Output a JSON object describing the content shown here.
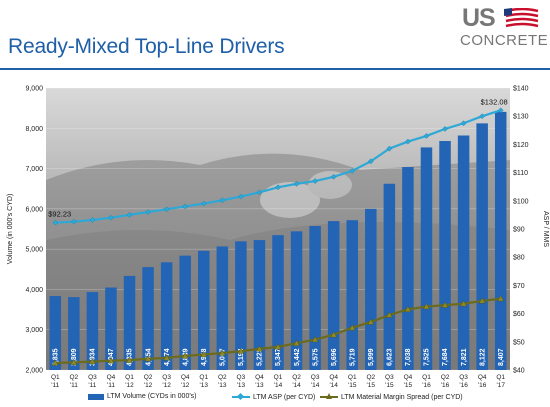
{
  "header": {
    "title": "Ready-Mixed Top-Line Drivers",
    "logo_top": "US",
    "logo_bottom": "CONCRETE"
  },
  "colors": {
    "bar": "#2464b4",
    "asp_line": "#2ea8d6",
    "margin_line": "#6b6b1e",
    "title": "#1f5fa8"
  },
  "chart_data": {
    "type": "bar",
    "categories": [
      "Q1\n'11",
      "Q2\n'11",
      "Q3\n'11",
      "Q4\n'11",
      "Q1\n'12",
      "Q2\n'12",
      "Q3\n'12",
      "Q4\n'12",
      "Q1\n'13",
      "Q2\n'13",
      "Q3\n'13",
      "Q4\n'13",
      "Q1\n'14",
      "Q2\n'14",
      "Q3\n'14",
      "Q4\n'14",
      "Q1\n'15",
      "Q2\n'15",
      "Q3\n'15",
      "Q4\n'15",
      "Q1\n'16",
      "Q2\n'16",
      "Q3\n'16",
      "Q4\n'16",
      "Q1\n'17"
    ],
    "series": [
      {
        "name": "LTM Volume (CYDs in 000's)",
        "axis": "left",
        "values": [
          3835,
          3809,
          3934,
          4047,
          4335,
          4554,
          4674,
          4839,
          4958,
          5067,
          5194,
          5225,
          5347,
          5442,
          5575,
          5696,
          5719,
          5999,
          6623,
          7038,
          7525,
          7684,
          7821,
          8122,
          8407
        ],
        "labels": [
          "3,835",
          "3,809",
          "3,934",
          "4,047",
          "4,335",
          "4,554",
          "4,674",
          "4,839",
          "4,958",
          "5,067",
          "5,194",
          "5,225",
          "5,347",
          "5,442",
          "5,575",
          "5,696",
          "5,719",
          "5,999",
          "6,623",
          "7,038",
          "7,525",
          "7,684",
          "7,821",
          "8,122",
          "8,407"
        ]
      },
      {
        "name": "LTM ASP (per CYD)",
        "axis": "right",
        "type": "line",
        "values": [
          92.23,
          92.6,
          93.2,
          94.0,
          95.0,
          96.0,
          97.0,
          98.0,
          99.0,
          100.2,
          101.5,
          103.0,
          104.8,
          106.0,
          107.0,
          108.5,
          110.6,
          114.0,
          118.5,
          121.0,
          123.0,
          125.5,
          127.5,
          130.0,
          132.08
        ]
      },
      {
        "name": "LTM Material Margin Spread (per CYD)",
        "axis": "right",
        "type": "line",
        "values": [
          42.5,
          42.7,
          43.0,
          43.3,
          43.5,
          44.0,
          44.3,
          45.0,
          45.5,
          46.0,
          46.7,
          47.5,
          48.2,
          49.5,
          50.8,
          52.5,
          55.0,
          57.0,
          59.5,
          61.5,
          62.5,
          63.0,
          63.5,
          64.5,
          65.3
        ]
      }
    ],
    "annotations": [
      {
        "series": "LTM ASP (per CYD)",
        "index": 0,
        "text": "$92.23"
      },
      {
        "series": "LTM ASP (per CYD)",
        "index": 24,
        "text": "$132.08"
      }
    ],
    "ylabel": "Volume (in 000's CYD)",
    "y2label": "ASP / MMS",
    "ylim": [
      2000,
      9000
    ],
    "y2lim": [
      40,
      140
    ],
    "yticks": [
      "2,000",
      "3,000",
      "4,000",
      "5,000",
      "6,000",
      "7,000",
      "8,000",
      "9,000"
    ],
    "y2ticks": [
      "$40",
      "$50",
      "$60",
      "$70",
      "$80",
      "$90",
      "$100",
      "$110",
      "$120",
      "$130",
      "$140"
    ],
    "legend_position": "bottom"
  },
  "legend": {
    "items": [
      "LTM Volume (CYDs in 000's)",
      "LTM ASP (per CYD)",
      "LTM Material Margin Spread (per CYD)"
    ]
  }
}
